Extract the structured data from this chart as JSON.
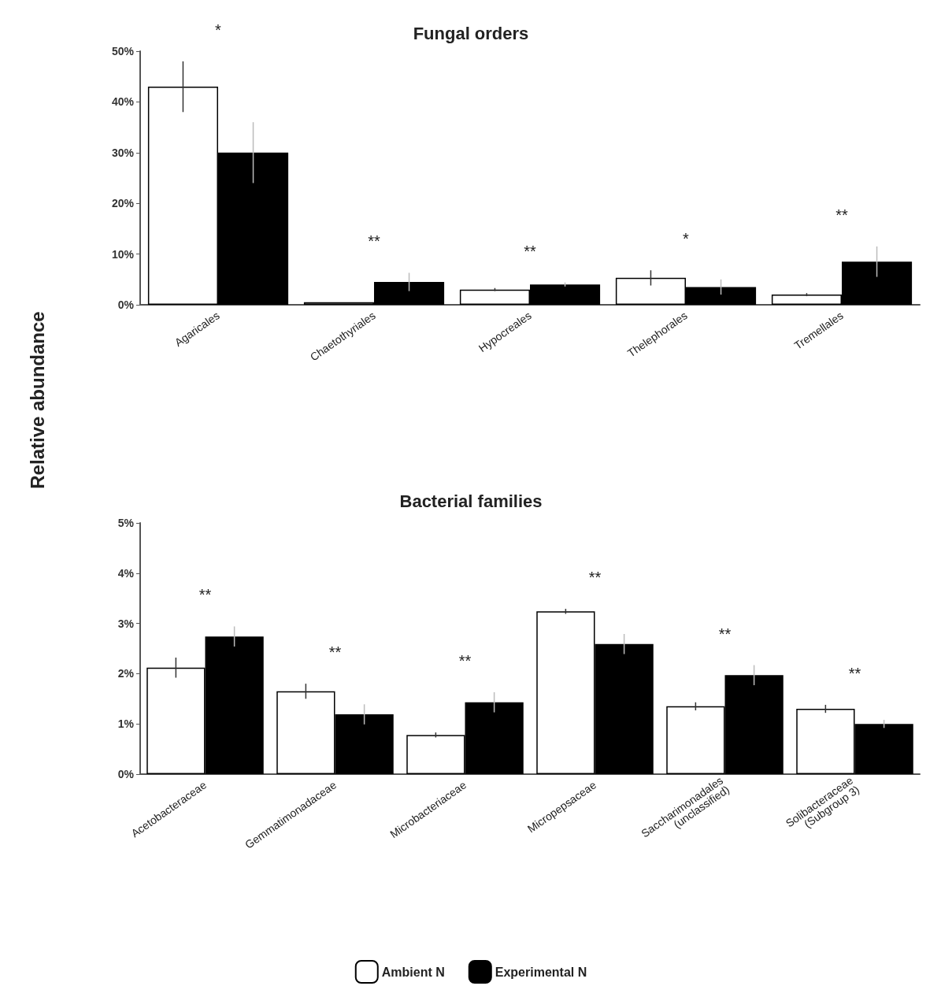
{
  "chart_data": [
    {
      "type": "bar",
      "title": "Fungal orders",
      "ylabel": "Relative abundance",
      "categories": [
        "Agaricales",
        "Chaetothyriales",
        "Hypocreales",
        "Thelephorales",
        "Tremellales"
      ],
      "series": [
        {
          "color": "#ffffff",
          "values": [
            43,
            0.5,
            3,
            5.3,
            2
          ],
          "errors": [
            5,
            null,
            0.3,
            1.5,
            0.3
          ]
        },
        {
          "color": "#000000",
          "values": [
            30,
            4.5,
            4,
            3.5,
            8.5
          ],
          "errors": [
            6,
            1.8,
            0.4,
            1.5,
            3
          ]
        }
      ],
      "ylim": [
        0,
        50
      ],
      "yticks": [
        {
          "value": 0,
          "label": "0%"
        },
        {
          "value": 10,
          "label": "10%"
        },
        {
          "value": 20,
          "label": "20%"
        },
        {
          "value": 30,
          "label": "30%"
        },
        {
          "value": 40,
          "label": "40%"
        },
        {
          "value": 50,
          "label": "50%"
        }
      ],
      "annotations": [
        "*",
        "**",
        "**",
        "*",
        "**"
      ],
      "grid": false,
      "legend": false
    },
    {
      "type": "bar",
      "title": "Bacterial families",
      "categories": [
        "Acetobacteraceae",
        "Gemmatimonadaceae",
        "Microbacteriaceae",
        "Micropepsaceae",
        "Saccharimonadales\n(unclassified)",
        "Solibacteraceae\n(Subgroup 3)"
      ],
      "series": [
        {
          "name": "Ambient N",
          "color": "#ffffff",
          "values": [
            2.12,
            1.65,
            0.78,
            3.24,
            1.35,
            1.3
          ],
          "errors": [
            0.2,
            0.15,
            0.05,
            0.05,
            0.08,
            0.08
          ]
        },
        {
          "name": "Experimental N",
          "color": "#000000",
          "values": [
            2.74,
            1.19,
            1.43,
            2.59,
            1.97,
            1.0
          ],
          "errors": [
            0.2,
            0.2,
            0.2,
            0.2,
            0.2,
            0.08
          ]
        }
      ],
      "ylim": [
        0,
        5
      ],
      "yticks": [
        {
          "value": 0,
          "label": "0%"
        },
        {
          "value": 1,
          "label": "1%"
        },
        {
          "value": 2,
          "label": "2%"
        },
        {
          "value": 3,
          "label": "3%"
        },
        {
          "value": 4,
          "label": "4%"
        },
        {
          "value": 5,
          "label": "5%"
        }
      ],
      "annotations": [
        "**",
        "**",
        "**",
        "**",
        "**",
        "**"
      ],
      "grid": false,
      "legend": "bottom"
    }
  ]
}
